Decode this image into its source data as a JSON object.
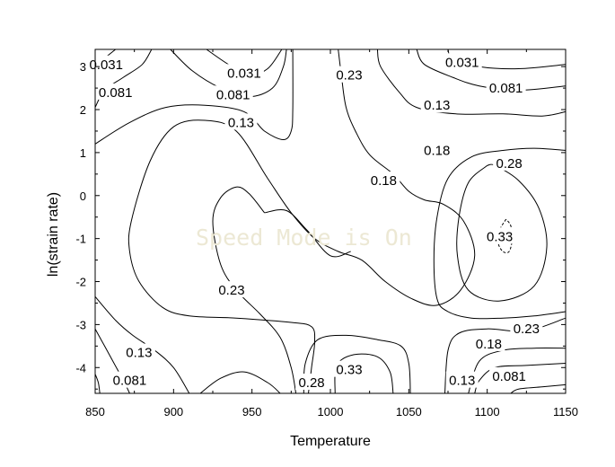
{
  "chart_data": {
    "type": "contour",
    "xlabel": "Temperature",
    "ylabel": "ln(strain rate)",
    "xlim": [
      850,
      1150
    ],
    "ylim": [
      -4.6,
      3.4
    ],
    "x_ticks": [
      "850",
      "900",
      "950",
      "1000",
      "1050",
      "1100",
      "1150"
    ],
    "x_tick_values": [
      850,
      900,
      950,
      1000,
      1050,
      1100,
      1150
    ],
    "y_ticks": [
      "3",
      "2",
      "1",
      "0",
      "-1",
      "-2",
      "-3",
      "-4"
    ],
    "y_tick_values": [
      3,
      2,
      1,
      0,
      -1,
      -2,
      -3,
      -4
    ],
    "grid": false,
    "watermark": "Speed Mode is On",
    "contour_levels": [
      "0.031",
      "0.081",
      "0.13",
      "0.18",
      "0.23",
      "0.28",
      "0.33"
    ],
    "contour_labels": [
      {
        "text": "0.031",
        "x": 857,
        "y": 3.05
      },
      {
        "text": "0.031",
        "x": 945,
        "y": 2.85
      },
      {
        "text": "0.031",
        "x": 1084,
        "y": 3.1
      },
      {
        "text": "0.081",
        "x": 863,
        "y": 2.4
      },
      {
        "text": "0.081",
        "x": 938,
        "y": 2.35
      },
      {
        "text": "0.081",
        "x": 1112,
        "y": 2.5
      },
      {
        "text": "0.13",
        "x": 943,
        "y": 1.7
      },
      {
        "text": "0.13",
        "x": 1068,
        "y": 2.1
      },
      {
        "text": "0.13",
        "x": 878,
        "y": -3.65
      },
      {
        "text": "0.13",
        "x": 1084,
        "y": -4.3
      },
      {
        "text": "0.081",
        "x": 872,
        "y": -4.3
      },
      {
        "text": "0.081",
        "x": 1114,
        "y": -4.2
      },
      {
        "text": "0.18",
        "x": 1068,
        "y": 1.05
      },
      {
        "text": "0.18",
        "x": 1034,
        "y": 0.35
      },
      {
        "text": "0.18",
        "x": 1101,
        "y": -3.45
      },
      {
        "text": "0.28",
        "x": 1114,
        "y": 0.75
      },
      {
        "text": "0.28",
        "x": 988,
        "y": -4.35
      },
      {
        "text": "0.33",
        "x": 1108,
        "y": -0.95
      },
      {
        "text": "0.33",
        "x": 1012,
        "y": -4.05
      },
      {
        "text": "0.23",
        "x": 1012,
        "y": 2.8
      },
      {
        "text": "0.23",
        "x": 937,
        "y": -2.2
      },
      {
        "text": "0.23",
        "x": 1125,
        "y": -3.1
      }
    ],
    "contours": [
      {
        "level": "0.031",
        "points": [
          [
            850,
            3.05
          ],
          [
            856,
            3.2
          ],
          [
            863,
            3.4
          ]
        ]
      },
      {
        "level": "0.031",
        "points": [
          [
            921,
            3.4
          ],
          [
            935,
            3.05
          ],
          [
            948,
            2.8
          ],
          [
            960,
            2.95
          ],
          [
            969,
            3.4
          ]
        ]
      },
      {
        "level": "0.031",
        "points": [
          [
            1075,
            3.4
          ],
          [
            1078,
            3.2
          ],
          [
            1095,
            3.0
          ],
          [
            1120,
            2.95
          ],
          [
            1150,
            3.05
          ]
        ]
      },
      {
        "level": "0.081",
        "points": [
          [
            850,
            2.05
          ],
          [
            856,
            2.45
          ],
          [
            868,
            2.75
          ],
          [
            880,
            3.05
          ],
          [
            886,
            3.4
          ]
        ]
      },
      {
        "level": "0.081",
        "points": [
          [
            898,
            3.4
          ],
          [
            912,
            2.9
          ],
          [
            930,
            2.5
          ],
          [
            948,
            2.3
          ],
          [
            963,
            2.5
          ],
          [
            970,
            3.0
          ],
          [
            972,
            3.4
          ]
        ]
      },
      {
        "level": "0.081",
        "points": [
          [
            1055,
            3.4
          ],
          [
            1060,
            3.05
          ],
          [
            1078,
            2.75
          ],
          [
            1095,
            2.55
          ],
          [
            1120,
            2.45
          ],
          [
            1150,
            2.55
          ]
        ]
      },
      {
        "level": "0.13",
        "points": [
          [
            850,
            1.2
          ],
          [
            872,
            1.7
          ],
          [
            895,
            2.05
          ],
          [
            920,
            2.1
          ],
          [
            945,
            1.95
          ],
          [
            958,
            1.5
          ],
          [
            970,
            1.3
          ],
          [
            975,
            1.5
          ],
          [
            976,
            2.0
          ],
          [
            976,
            3.4
          ]
        ]
      },
      {
        "level": "0.13",
        "points": [
          [
            1030,
            3.4
          ],
          [
            1032,
            3.0
          ],
          [
            1044,
            2.4
          ],
          [
            1055,
            2.05
          ],
          [
            1080,
            1.9
          ],
          [
            1110,
            1.9
          ],
          [
            1135,
            1.85
          ],
          [
            1150,
            1.95
          ]
        ]
      },
      {
        "level": "0.18",
        "points": [
          [
            1005,
            3.4
          ],
          [
            1007,
            2.8
          ],
          [
            1010,
            2.05
          ],
          [
            1016,
            1.5
          ],
          [
            1025,
            0.95
          ],
          [
            1040,
            0.5
          ],
          [
            1050,
            0.1
          ],
          [
            1060,
            -0.1
          ],
          [
            1072,
            -0.2
          ],
          [
            1085,
            -0.6
          ],
          [
            1092,
            -1.4
          ],
          [
            1083,
            -2.2
          ],
          [
            1068,
            -2.55
          ],
          [
            1052,
            -2.4
          ],
          [
            1035,
            -2.0
          ],
          [
            1020,
            -1.5
          ],
          [
            1005,
            -1.3
          ],
          [
            990,
            -1.0
          ],
          [
            975,
            -0.4
          ],
          [
            960,
            0.4
          ],
          [
            940,
            1.5
          ],
          [
            920,
            1.75
          ],
          [
            900,
            1.6
          ],
          [
            885,
            0.8
          ],
          [
            873,
            -0.6
          ],
          [
            872,
            -1.3
          ],
          [
            878,
            -2.0
          ],
          [
            893,
            -2.6
          ],
          [
            910,
            -2.8
          ],
          [
            940,
            -2.85
          ],
          [
            975,
            -2.95
          ],
          [
            988,
            -3.05
          ],
          [
            990,
            -3.4
          ],
          [
            988,
            -4.0
          ],
          [
            986,
            -4.6
          ]
        ]
      },
      {
        "level": "0.18",
        "points": [
          [
            1150,
            1.05
          ],
          [
            1130,
            1.1
          ],
          [
            1110,
            1.05
          ],
          [
            1090,
            0.9
          ],
          [
            1075,
            0.4
          ],
          [
            1068,
            -0.5
          ],
          [
            1066,
            -1.5
          ],
          [
            1068,
            -2.4
          ],
          [
            1075,
            -2.7
          ],
          [
            1090,
            -2.85
          ],
          [
            1110,
            -2.85
          ],
          [
            1130,
            -2.8
          ],
          [
            1150,
            -2.7
          ]
        ]
      },
      {
        "level": "0.28",
        "points": [
          [
            1100,
            0.7
          ],
          [
            1088,
            0.3
          ],
          [
            1082,
            -0.5
          ],
          [
            1081,
            -1.4
          ],
          [
            1088,
            -2.2
          ],
          [
            1108,
            -2.45
          ],
          [
            1130,
            -2.1
          ],
          [
            1138,
            -1.2
          ],
          [
            1133,
            -0.3
          ],
          [
            1120,
            0.35
          ],
          [
            1105,
            0.7
          ],
          [
            1100,
            0.7
          ]
        ]
      },
      {
        "level": "0.23",
        "points": [
          [
            958,
            -0.4
          ],
          [
            948,
            0.05
          ],
          [
            940,
            0.2
          ],
          [
            930,
            -0.05
          ],
          [
            925,
            -0.6
          ],
          [
            930,
            -1.6
          ],
          [
            940,
            -2.2
          ],
          [
            955,
            -2.75
          ],
          [
            968,
            -3.3
          ],
          [
            975,
            -4.0
          ],
          [
            978,
            -4.6
          ]
        ]
      },
      {
        "level": "0.23",
        "points": [
          [
            1013,
            -1.3
          ],
          [
            1000,
            -1.4
          ],
          [
            985,
            -0.8
          ],
          [
            972,
            -0.35
          ],
          [
            958,
            -0.4
          ]
        ]
      },
      {
        "level": "0.33",
        "points": [
          [
            1112,
            -0.55
          ],
          [
            1108,
            -0.8
          ],
          [
            1107,
            -1.1
          ],
          [
            1110,
            -1.3
          ],
          [
            1114,
            -1.3
          ],
          [
            1116,
            -1.0
          ],
          [
            1115,
            -0.7
          ],
          [
            1112,
            -0.55
          ]
        ]
      },
      {
        "level": "0.28",
        "points": [
          [
            983,
            -4.6
          ],
          [
            984,
            -3.9
          ],
          [
            992,
            -3.35
          ],
          [
            1010,
            -3.25
          ],
          [
            1030,
            -3.35
          ],
          [
            1045,
            -3.5
          ],
          [
            1050,
            -3.9
          ],
          [
            1051,
            -4.6
          ]
        ]
      },
      {
        "level": "0.23",
        "points": [
          [
            1150,
            -2.85
          ],
          [
            1125,
            -3.15
          ],
          [
            1100,
            -3.1
          ],
          [
            1082,
            -3.2
          ],
          [
            1075,
            -3.6
          ],
          [
            1073,
            -4.6
          ]
        ]
      },
      {
        "level": "0.33",
        "points": [
          [
            1003,
            -4.6
          ],
          [
            1004,
            -3.95
          ],
          [
            1015,
            -3.7
          ],
          [
            1030,
            -3.75
          ],
          [
            1038,
            -4.1
          ],
          [
            1040,
            -4.6
          ]
        ]
      },
      {
        "level": "0.18",
        "points": [
          [
            1150,
            -3.55
          ],
          [
            1130,
            -3.55
          ],
          [
            1110,
            -3.6
          ],
          [
            1095,
            -3.85
          ],
          [
            1088,
            -4.6
          ]
        ]
      },
      {
        "level": "0.13",
        "points": [
          [
            1150,
            -3.9
          ],
          [
            1125,
            -3.95
          ],
          [
            1105,
            -4.0
          ],
          [
            1095,
            -4.3
          ],
          [
            1092,
            -4.6
          ]
        ]
      },
      {
        "level": "0.081",
        "points": [
          [
            1150,
            -4.4
          ],
          [
            1135,
            -4.45
          ],
          [
            1120,
            -4.5
          ],
          [
            1115,
            -4.6
          ]
        ]
      },
      {
        "level": "0.23",
        "points": [
          [
            917,
            -4.6
          ],
          [
            930,
            -4.25
          ],
          [
            945,
            -4.1
          ],
          [
            960,
            -4.35
          ],
          [
            968,
            -4.6
          ]
        ]
      },
      {
        "level": "0.13",
        "points": [
          [
            850,
            -2.35
          ],
          [
            863,
            -2.9
          ],
          [
            874,
            -3.25
          ],
          [
            888,
            -3.6
          ],
          [
            900,
            -4.0
          ],
          [
            910,
            -4.6
          ]
        ]
      },
      {
        "level": "0.081",
        "points": [
          [
            850,
            -3.1
          ],
          [
            856,
            -3.5
          ],
          [
            862,
            -3.9
          ],
          [
            868,
            -4.3
          ],
          [
            872,
            -4.6
          ]
        ]
      },
      {
        "level": "0.031",
        "points": [
          [
            850,
            -4.15
          ],
          [
            852,
            -4.35
          ],
          [
            853,
            -4.6
          ]
        ]
      }
    ]
  }
}
